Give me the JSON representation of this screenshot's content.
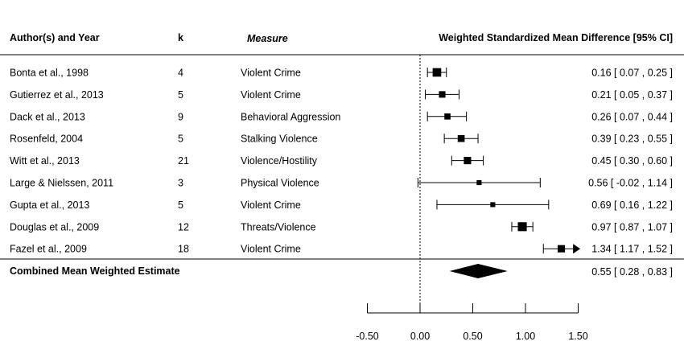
{
  "chart_data": {
    "type": "forest",
    "headers": {
      "author": "Author(s) and Year",
      "k": "k",
      "measure": "Measure",
      "effect": "Weighted Standardized Mean Difference [95% CI]"
    },
    "studies": [
      {
        "author": "Bonta et al., 1998",
        "k": "4",
        "measure": "Violent Crime",
        "estimate": 0.16,
        "lower": 0.07,
        "upper": 0.25,
        "label": "0.16 [  0.07 ,  0.25 ]",
        "weight": 0.7,
        "arrow": false
      },
      {
        "author": "Gutierrez et al., 2013",
        "k": "5",
        "measure": "Violent Crime",
        "estimate": 0.21,
        "lower": 0.05,
        "upper": 0.37,
        "label": "0.21 [  0.05 ,  0.37 ]",
        "weight": 0.45,
        "arrow": false
      },
      {
        "author": "Dack et al., 2013",
        "k": "9",
        "measure": "Behavioral Aggression",
        "estimate": 0.26,
        "lower": 0.07,
        "upper": 0.44,
        "label": "0.26 [  0.07 ,  0.44 ]",
        "weight": 0.4,
        "arrow": false
      },
      {
        "author": "Rosenfeld, 2004",
        "k": "5",
        "measure": "Stalking Violence",
        "estimate": 0.39,
        "lower": 0.23,
        "upper": 0.55,
        "label": "0.39 [  0.23 ,  0.55 ]",
        "weight": 0.5,
        "arrow": false
      },
      {
        "author": "Witt et al., 2013",
        "k": "21",
        "measure": "Violence/Hostility",
        "estimate": 0.45,
        "lower": 0.3,
        "upper": 0.6,
        "label": "0.45 [  0.30 ,  0.60 ]",
        "weight": 0.55,
        "arrow": false
      },
      {
        "author": "Large & Nielssen, 2011",
        "k": "3",
        "measure": "Physical Violence",
        "estimate": 0.56,
        "lower": -0.02,
        "upper": 1.14,
        "label": "0.56 [ -0.02 ,  1.14 ]",
        "weight": 0.25,
        "arrow": false
      },
      {
        "author": "Gupta et al., 2013",
        "k": "5",
        "measure": "Violent Crime",
        "estimate": 0.69,
        "lower": 0.16,
        "upper": 1.22,
        "label": "0.69 [  0.16 ,  1.22 ]",
        "weight": 0.25,
        "arrow": false
      },
      {
        "author": "Douglas et al., 2009",
        "k": "12",
        "measure": "Threats/Violence",
        "estimate": 0.97,
        "lower": 0.87,
        "upper": 1.07,
        "label": "0.97 [  0.87 ,  1.07 ]",
        "weight": 0.75,
        "arrow": false
      },
      {
        "author": "Fazel et al., 2009",
        "k": "18",
        "measure": "Violent Crime",
        "estimate": 1.34,
        "lower": 1.17,
        "upper": 1.52,
        "label": "1.34 [  1.17 ,  1.52 ]",
        "weight": 0.55,
        "arrow": true
      }
    ],
    "combined": {
      "label": "Combined Mean Weighted Estimate",
      "estimate": 0.55,
      "lower": 0.28,
      "upper": 0.83,
      "text": "0.55 [  0.28 ,  0.83 ]"
    },
    "x_axis": {
      "ticks": [
        -0.5,
        0.0,
        0.5,
        1.0,
        1.5
      ],
      "tick_labels": [
        "-0.50",
        "0.00",
        "0.50",
        "1.00",
        "1.50"
      ],
      "range": [
        -0.5,
        1.5
      ],
      "reference_line": 0
    }
  }
}
